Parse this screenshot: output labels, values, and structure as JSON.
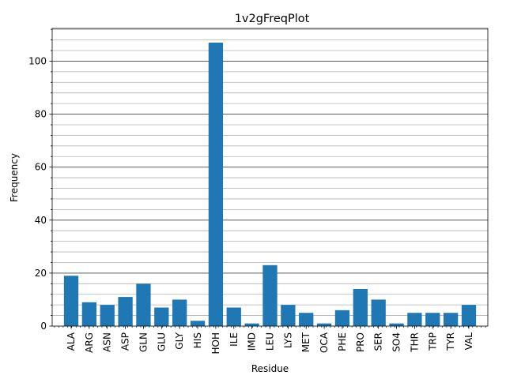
{
  "chart_data": {
    "type": "bar",
    "title": "1v2gFreqPlot",
    "xlabel": "Residue",
    "ylabel": "Frequency",
    "categories": [
      "ALA",
      "ARG",
      "ASN",
      "ASP",
      "GLN",
      "GLU",
      "GLY",
      "HIS",
      "HOH",
      "ILE",
      "IMD",
      "LEU",
      "LYS",
      "MET",
      "OCA",
      "PHE",
      "PRO",
      "SER",
      "SO4",
      "THR",
      "TRP",
      "TYR",
      "VAL"
    ],
    "values": [
      19,
      9,
      8,
      11,
      16,
      7,
      10,
      2,
      107,
      7,
      1,
      23,
      8,
      5,
      1,
      6,
      14,
      10,
      1,
      5,
      5,
      5,
      8
    ],
    "ylim": [
      0,
      112.35
    ],
    "yticks": [
      0,
      20,
      40,
      60,
      80,
      100
    ],
    "grid": {
      "major": true,
      "minor": true,
      "axis": "y"
    },
    "bar_color": "#1f77b4"
  }
}
